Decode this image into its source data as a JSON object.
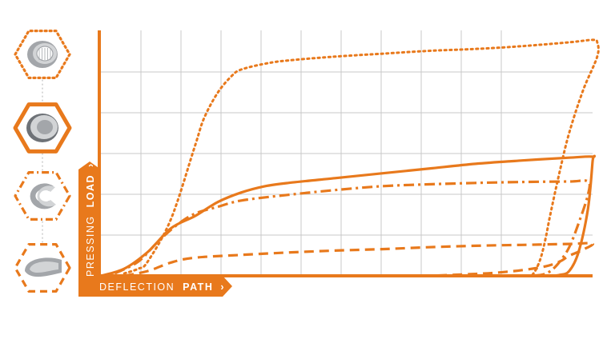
{
  "accent_color": "#e8791c",
  "grid_color": "#c8c8c8",
  "icon_colors": {
    "gray_light": "#d2d4d6",
    "gray_mid": "#a3a6aa",
    "gray_dark": "#6e7277"
  },
  "axes": {
    "y_label_normal": "PRESSING",
    "y_label_bold": "LOAD",
    "x_label_normal": "DEFLECTION",
    "x_label_bold": "PATH",
    "chevron": "›"
  },
  "profile_icons": [
    {
      "name": "profile-icon-dotted",
      "border": "dotted",
      "cross_section": "round-ribbed-tube"
    },
    {
      "name": "profile-icon-solid",
      "border": "solid",
      "cross_section": "round-tube"
    },
    {
      "name": "profile-icon-dashdot",
      "border": "dash-dot",
      "cross_section": "open-tube"
    },
    {
      "name": "profile-icon-dashed",
      "border": "dashed",
      "cross_section": "flat-tube"
    }
  ],
  "chart_data": {
    "type": "line",
    "title": "",
    "xlabel": "DEFLECTION PATH",
    "ylabel": "PRESSING LOAD",
    "xlim": [
      0,
      10.5
    ],
    "ylim": [
      0,
      5.15
    ],
    "grid": true,
    "tick_labels": false,
    "series": [
      {
        "style": "dotted",
        "x": [
          0.5,
          0.8,
          1.0,
          1.5,
          2.0,
          2.2,
          2.5,
          2.8,
          3.0,
          3.5,
          4.0,
          5.0,
          6.0,
          7.0,
          8.0,
          9.0,
          10.0,
          10.5,
          10.6,
          10.6,
          10.3,
          10.0,
          9.8,
          9.6,
          9.5,
          9.4,
          9.3,
          9.2
        ],
        "y": [
          0.05,
          0.15,
          0.3,
          1.2,
          2.7,
          3.3,
          3.85,
          4.2,
          4.33,
          4.45,
          4.52,
          4.6,
          4.66,
          4.72,
          4.76,
          4.82,
          4.9,
          4.95,
          4.9,
          4.6,
          3.9,
          3.0,
          2.2,
          1.3,
          0.8,
          0.4,
          0.15,
          0.0
        ]
      },
      {
        "style": "solid",
        "x": [
          0.0,
          0.5,
          1.0,
          1.5,
          2.0,
          2.5,
          3.0,
          3.5,
          4.0,
          5.0,
          6.0,
          7.0,
          8.0,
          9.0,
          10.0,
          10.5,
          10.5,
          10.4,
          10.2,
          10.0,
          9.8,
          9.6
        ],
        "y": [
          0.0,
          0.15,
          0.5,
          1.0,
          1.25,
          1.55,
          1.75,
          1.88,
          1.95,
          2.05,
          2.15,
          2.25,
          2.35,
          2.42,
          2.48,
          2.5,
          2.4,
          1.4,
          0.5,
          0.1,
          0.02,
          0.0
        ]
      },
      {
        "style": "dash-dot",
        "x": [
          0.3,
          0.8,
          1.2,
          1.6,
          2.0,
          2.5,
          3.0,
          4.0,
          5.0,
          6.0,
          7.0,
          8.0,
          9.0,
          10.0,
          10.4,
          10.4,
          10.2,
          10.0,
          9.8,
          9.6,
          9.4,
          9.0
        ],
        "y": [
          0.05,
          0.3,
          0.7,
          1.05,
          1.3,
          1.45,
          1.58,
          1.7,
          1.8,
          1.88,
          1.92,
          1.95,
          1.97,
          1.98,
          1.98,
          1.7,
          1.1,
          0.6,
          0.3,
          0.1,
          0.02,
          0.0
        ]
      },
      {
        "style": "dashed",
        "x": [
          0.5,
          1.0,
          1.5,
          2.0,
          3.0,
          4.0,
          5.0,
          6.0,
          7.0,
          8.0,
          9.0,
          10.0,
          10.5,
          10.3,
          10.0,
          9.8,
          9.5,
          9.0,
          8.5,
          8.0,
          7.0
        ],
        "y": [
          0.0,
          0.1,
          0.28,
          0.38,
          0.44,
          0.49,
          0.53,
          0.56,
          0.6,
          0.63,
          0.65,
          0.67,
          0.68,
          0.55,
          0.42,
          0.3,
          0.2,
          0.12,
          0.07,
          0.04,
          0.0
        ]
      }
    ]
  }
}
